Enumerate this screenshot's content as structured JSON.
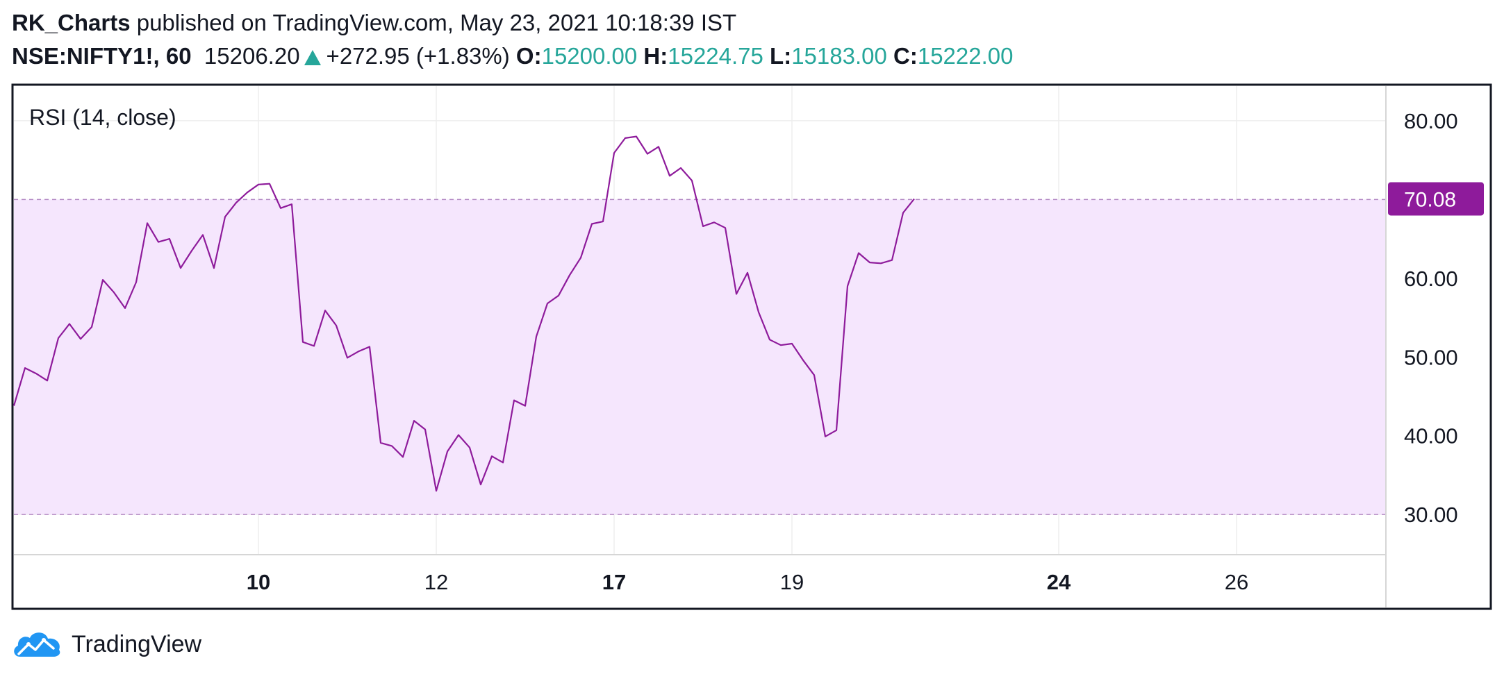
{
  "header": {
    "author": "RK_Charts",
    "published": "published on TradingView.com, May 23, 2021 10:18:39 IST",
    "symbol": "NSE:NIFTY1!, 60",
    "price": "15206.20",
    "change": "+272.95 (+1.83%)",
    "open_label": "O:",
    "open": "15200.00",
    "high_label": "H:",
    "high": "15224.75",
    "low_label": "L:",
    "low": "15183.00",
    "close_label": "C:",
    "close": "15222.00",
    "up_color": "#26a69a"
  },
  "brand": {
    "name": "TradingView",
    "icon": "tradingview-cloud-icon"
  },
  "chart_data": {
    "type": "line",
    "title": "RSI (14, close)",
    "series": [
      {
        "color": "#8e1b9b",
        "values": [
          43.8,
          48.6,
          47.9,
          47.0,
          52.4,
          54.2,
          52.3,
          53.8,
          59.8,
          58.2,
          56.2,
          59.5,
          67.0,
          64.6,
          65.0,
          61.3,
          63.5,
          65.5,
          61.3,
          67.8,
          69.6,
          70.9,
          71.9,
          72.0,
          68.9,
          69.4,
          51.9,
          51.4,
          55.9,
          54.0,
          49.9,
          50.7,
          51.3,
          39.1,
          38.7,
          37.3,
          41.9,
          40.8,
          33.0,
          38.0,
          40.1,
          38.5,
          33.8,
          37.4,
          36.6,
          44.5,
          43.8,
          52.6,
          56.8,
          57.8,
          60.4,
          62.6,
          66.9,
          67.2,
          75.9,
          77.8,
          78.0,
          75.8,
          76.7,
          73.0,
          74.0,
          72.4,
          66.6,
          67.1,
          66.4,
          58.0,
          60.7,
          55.7,
          52.2,
          51.5,
          51.7,
          49.6,
          47.7,
          39.9,
          40.7,
          59.0,
          63.2,
          62.0,
          61.9,
          62.3,
          68.3,
          70.08
        ]
      }
    ],
    "last_value": "70.08",
    "y_ticks": [
      "80.00",
      "60.00",
      "50.00",
      "40.00",
      "30.00"
    ],
    "ylim": [
      24.9,
      84.4
    ],
    "upper_band": 70,
    "lower_band": 30,
    "x_ticks": [
      {
        "label": "10",
        "bold": true,
        "index": 22
      },
      {
        "label": "12",
        "bold": false,
        "index": 38
      },
      {
        "label": "17",
        "bold": true,
        "index": 54
      },
      {
        "label": "19",
        "bold": false,
        "index": 70
      },
      {
        "label": "24",
        "bold": true,
        "index": 94
      },
      {
        "label": "26",
        "bold": false,
        "index": 110
      }
    ],
    "band_fill": "#f5e6fd",
    "line_color": "#8e1b9b",
    "label_bg": "#8e1b9b"
  }
}
